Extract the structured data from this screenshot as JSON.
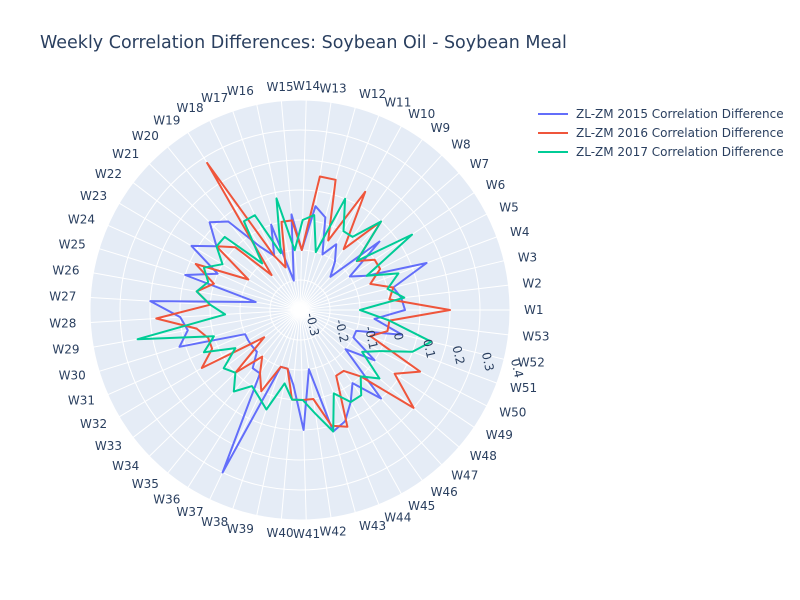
{
  "chart_data": {
    "type": "polar-line",
    "title": "Weekly Correlation Differences: Soybean Oil - Soybean Meal",
    "radial_range": [
      -0.3,
      0.4
    ],
    "radial_ticks": [
      "-0.3",
      "-0.2",
      "-0.1",
      "0",
      "0.1",
      "0.2",
      "0.3",
      "0.4"
    ],
    "angular_categories": [
      "W1",
      "W2",
      "W3",
      "W4",
      "W5",
      "W6",
      "W7",
      "W8",
      "W9",
      "W10",
      "W11",
      "W12",
      "W13",
      "W14",
      "W15",
      "W16",
      "W17",
      "W18",
      "W19",
      "W20",
      "W21",
      "W22",
      "W23",
      "W24",
      "W25",
      "W26",
      "W27",
      "W28",
      "W29",
      "W30",
      "W31",
      "W32",
      "W33",
      "W34",
      "W35",
      "W36",
      "W37",
      "W38",
      "W39",
      "W40",
      "W41",
      "W42",
      "W43",
      "W44",
      "W45",
      "W46",
      "W47",
      "W48",
      "W49",
      "W50",
      "W51",
      "W52",
      "W53"
    ],
    "legend_position": "top-right",
    "series": [
      {
        "name": "ZL-ZM 2015 Correlation Difference",
        "color": "#636efa",
        "values": [
          0.05,
          0.04,
          0.02,
          0.15,
          -0.05,
          -0.1,
          0.05,
          -0.15,
          -0.1,
          -0.05,
          -0.1,
          0.02,
          0.05,
          -0.1,
          0.02,
          -0.2,
          0.0,
          -0.1,
          -0.05,
          0.08,
          0.12,
          0.05,
          0.12,
          0.0,
          0.1,
          -0.15,
          0.2,
          0.1,
          0.08,
          0.12,
          -0.1,
          -0.1,
          -0.1,
          -0.1,
          -0.05,
          -0.05,
          0.3,
          -0.1,
          -0.1,
          -0.05,
          0.1,
          -0.1,
          0.12,
          0.1,
          0.05,
          0.0,
          0.1,
          -0.1,
          0.0,
          -0.1,
          -0.1,
          0.05,
          -0.05
        ]
      },
      {
        "name": "ZL-ZM 2016 Correlation Difference",
        "color": "#EF553B",
        "values": [
          0.2,
          0.0,
          0.02,
          -0.05,
          0.0,
          0.0,
          -0.05,
          0.1,
          -0.05,
          0.15,
          -0.05,
          0.15,
          0.15,
          -0.1,
          0.0,
          0.0,
          -0.15,
          -0.1,
          0.28,
          -0.15,
          0.0,
          0.05,
          -0.1,
          0.08,
          0.0,
          0.05,
          0.0,
          0.18,
          0.05,
          0.02,
          0.02,
          0.08,
          -0.15,
          0.0,
          -0.1,
          -0.05,
          0.0,
          -0.1,
          -0.1,
          0.0,
          0.0,
          0.0,
          0.1,
          0.12,
          -0.05,
          -0.05,
          0.0,
          0.2,
          0.08,
          0.15,
          -0.05,
          0.0,
          0.0
        ]
      },
      {
        "name": "ZL-ZM 2017 Correlation Difference",
        "color": "#00cc96",
        "values": [
          -0.1,
          0.05,
          0.0,
          0.05,
          -0.05,
          0.15,
          -0.05,
          0.1,
          0.0,
          0.0,
          0.1,
          -0.1,
          0.02,
          0.0,
          -0.1,
          0.08,
          -0.1,
          0.05,
          0.05,
          -0.1,
          0.05,
          0.05,
          0.0,
          0.05,
          0.02,
          0.05,
          0.0,
          -0.05,
          0.25,
          0.0,
          0.05,
          -0.05,
          0.02,
          0.0,
          0.05,
          0.0,
          0.02,
          0.05,
          -0.05,
          0.0,
          0.0,
          0.05,
          0.12,
          0.0,
          0.05,
          0.05,
          0.0,
          0.05,
          -0.05,
          0.0,
          0.1,
          0.15,
          0.0
        ]
      }
    ]
  }
}
